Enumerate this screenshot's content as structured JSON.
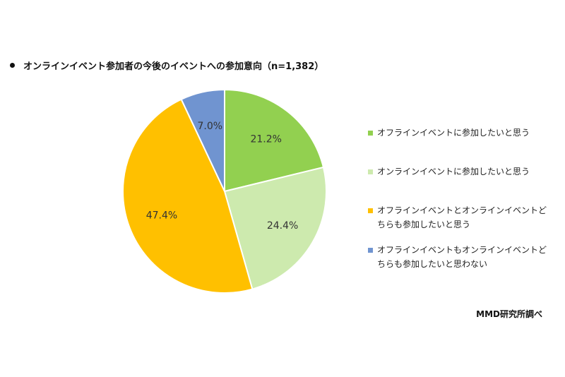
{
  "title": "オンラインイベント参加者の今後のイベントへの参加意向（n=1,382）",
  "source": "MMD研究所調べ",
  "chart_data": {
    "type": "pie",
    "title": "オンラインイベント参加者の今後のイベントへの参加意向（n=1,382）",
    "legend_position": "right",
    "slices": [
      {
        "name": "オフラインイベントに参加したいと思う",
        "value": 21.2,
        "label": "21.2%",
        "color": "#92D050"
      },
      {
        "name": "オンラインイベントに参加したいと思う",
        "value": 24.4,
        "label": "24.4%",
        "color": "#CDEAAE"
      },
      {
        "name": "オフラインイベントとオンラインイベントどちらも参加したいと思う",
        "value": 47.4,
        "label": "47.4%",
        "color": "#FFC000"
      },
      {
        "name": "オフラインイベントもオンラインイベントどちらも参加したいと思わない",
        "value": 7.0,
        "label": "7.0%",
        "color": "#7094D0"
      }
    ]
  }
}
